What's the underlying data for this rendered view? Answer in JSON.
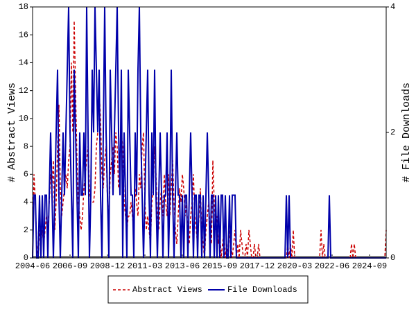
{
  "chart_data": {
    "type": "line",
    "y_label": "# Abstract Views",
    "y2_label": "# File Downloads",
    "x": [
      "2004-06",
      null,
      null,
      null,
      null,
      null,
      null,
      null,
      null,
      null,
      null,
      null,
      null,
      null,
      null,
      null,
      null,
      null,
      null,
      null,
      null,
      null,
      null,
      null,
      null,
      null,
      null,
      "2006-09",
      null,
      null,
      null,
      null,
      null,
      null,
      null,
      null,
      null,
      null,
      null,
      null,
      null,
      null,
      null,
      null,
      null,
      null,
      null,
      null,
      null,
      null,
      null,
      null,
      null,
      null,
      "2008-12",
      null,
      null,
      null,
      null,
      null,
      null,
      null,
      null,
      null,
      null,
      null,
      null,
      null,
      null,
      null,
      null,
      null,
      null,
      null,
      null,
      null,
      null,
      null,
      null,
      null,
      null,
      "2011-03",
      null,
      null,
      null,
      null,
      null,
      null,
      null,
      null,
      null,
      null,
      null,
      null,
      null,
      null,
      null,
      null,
      null,
      null,
      null,
      null,
      null,
      null,
      null,
      null,
      null,
      null,
      "2013-06",
      null,
      null,
      null,
      null,
      null,
      null,
      null,
      null,
      null,
      null,
      null,
      null,
      null,
      null,
      null,
      null,
      null,
      null,
      null,
      null,
      null,
      null,
      null,
      null,
      null,
      null,
      "2015-09",
      null,
      null,
      null,
      null,
      null,
      null,
      null,
      null,
      null,
      null,
      null,
      null,
      null,
      null,
      null,
      null,
      null,
      null,
      null,
      null,
      null,
      null,
      null,
      null,
      null,
      null,
      "2017-12",
      null,
      null,
      null,
      null,
      null,
      null,
      null,
      null,
      null,
      null,
      null,
      null,
      null,
      null,
      null,
      null,
      null,
      null,
      null,
      null,
      null,
      null,
      null,
      null,
      null,
      null,
      "2020-03",
      null,
      null,
      null,
      null,
      null,
      null,
      null,
      null,
      null,
      null,
      null,
      null,
      null,
      null,
      null,
      null,
      null,
      null,
      null,
      null,
      null,
      null,
      null,
      null,
      null,
      null,
      "2022-06",
      null,
      null,
      null,
      null,
      null,
      null,
      null,
      null,
      null,
      null,
      null,
      null,
      null,
      null,
      null,
      null,
      null,
      null,
      null,
      null,
      null,
      null,
      null,
      null,
      null,
      null,
      "2024-09",
      null,
      null,
      null,
      null,
      null,
      null,
      null,
      null,
      null,
      null,
      null,
      null
    ],
    "series": [
      {
        "name": "Abstract Views",
        "color": "#cc0000",
        "dashed": true,
        "values": [
          0,
          6,
          4,
          1,
          0,
          2,
          1,
          2,
          1,
          2,
          3,
          2,
          4,
          6,
          5,
          7,
          2,
          4,
          8,
          11,
          5,
          3,
          4,
          5,
          6,
          5,
          7,
          8,
          14,
          9,
          17,
          12,
          7,
          4,
          3,
          2,
          3,
          5,
          6,
          7,
          8,
          5,
          4,
          4,
          4,
          5,
          8,
          9,
          12,
          10,
          6,
          5,
          7,
          8,
          4,
          3,
          6,
          7,
          8,
          6,
          9,
          8,
          5,
          6,
          9,
          8,
          4,
          3,
          2,
          3,
          3,
          4,
          3,
          2,
          5,
          4,
          3,
          6,
          5,
          8,
          9,
          4,
          2,
          3,
          2,
          1,
          4,
          5,
          8,
          6,
          3,
          2,
          4,
          5,
          3,
          6,
          4,
          3,
          6,
          3,
          5,
          7,
          4,
          2,
          1,
          3,
          5,
          4,
          6,
          5,
          3,
          4,
          2,
          1,
          3,
          4,
          6,
          3,
          2,
          1,
          3,
          5,
          2,
          1,
          0,
          2,
          3,
          4,
          2,
          1,
          7,
          4,
          2,
          3,
          1,
          2,
          0,
          1,
          2,
          0,
          1,
          0,
          2,
          1,
          0,
          1,
          2,
          0,
          1,
          0,
          2,
          1,
          0,
          0,
          1,
          0,
          2,
          1,
          0,
          0,
          1,
          0,
          0,
          1,
          0,
          0,
          0,
          0,
          0,
          0,
          0,
          0,
          0,
          0,
          0,
          0,
          0,
          0,
          0,
          0,
          0,
          0,
          0,
          0,
          1,
          0,
          1,
          0,
          2,
          0,
          0,
          0,
          0,
          0,
          0,
          0,
          0,
          0,
          0,
          0,
          0,
          0,
          0,
          0,
          0,
          0,
          0,
          0,
          2,
          0,
          1,
          0,
          0,
          0,
          0,
          0,
          0,
          0,
          0,
          0,
          0,
          0,
          0,
          0,
          0,
          0,
          0,
          0,
          0,
          0,
          1,
          0,
          1,
          0,
          0,
          0,
          0,
          0,
          0,
          0,
          0,
          0,
          0,
          0,
          0,
          0,
          0,
          0,
          0,
          0,
          0,
          0,
          0,
          0,
          0,
          2
        ]
      },
      {
        "name": "File Downloads",
        "color": "#0000aa",
        "dashed": false,
        "axis": "y2",
        "values": [
          0,
          1,
          1,
          0,
          0,
          1,
          0,
          1,
          0,
          1,
          1,
          0,
          1,
          2,
          1,
          0,
          1,
          2,
          3,
          1,
          0,
          1,
          2,
          1,
          2,
          3,
          4,
          2,
          1,
          0,
          3,
          2,
          1,
          0,
          2,
          1,
          1,
          2,
          1,
          4,
          2,
          0,
          1,
          3,
          2,
          4,
          3,
          2,
          3,
          1,
          0,
          2,
          4,
          2,
          1,
          0,
          3,
          2,
          1,
          2,
          3,
          4,
          2,
          1,
          3,
          0,
          2,
          1,
          0,
          3,
          2,
          1,
          1,
          0,
          2,
          1,
          3,
          4,
          2,
          1,
          0,
          1,
          2,
          3,
          1,
          0,
          2,
          1,
          3,
          1,
          0,
          1,
          2,
          1,
          0,
          1,
          1,
          2,
          0,
          1,
          3,
          1,
          0,
          1,
          2,
          1,
          1,
          0,
          1,
          0,
          1,
          1,
          0,
          1,
          2,
          1,
          0,
          1,
          1,
          0,
          1,
          1,
          0,
          1,
          0,
          1,
          2,
          1,
          0,
          1,
          1,
          0,
          1,
          0,
          1,
          0,
          1,
          1,
          0,
          1,
          0,
          0,
          1,
          0,
          1,
          1,
          1,
          0,
          0,
          0,
          0,
          0,
          0,
          0,
          0,
          0,
          0,
          0,
          0,
          0,
          0,
          0,
          0,
          0,
          0,
          0,
          0,
          0,
          0,
          0,
          0,
          0,
          0,
          0,
          0,
          0,
          0,
          0,
          0,
          0,
          0,
          0,
          0,
          1,
          0,
          1,
          0,
          0,
          0,
          0,
          0,
          0,
          0,
          0,
          0,
          0,
          0,
          0,
          0,
          0,
          0,
          0,
          0,
          0,
          0,
          0,
          0,
          0,
          0,
          0,
          0,
          0,
          0,
          0,
          1,
          0,
          0,
          0,
          0,
          0,
          0,
          0,
          0,
          0,
          0,
          0,
          0,
          0,
          0,
          0,
          0,
          0,
          0,
          0,
          0,
          0,
          0,
          0,
          0,
          0,
          0,
          0,
          0,
          0,
          0,
          0,
          0,
          0,
          0,
          0,
          0,
          0,
          0,
          0,
          0,
          0
        ]
      }
    ],
    "ylim": [
      0,
      18
    ],
    "yticks": [
      0,
      2,
      4,
      6,
      8,
      10,
      12,
      14,
      16,
      18
    ],
    "y2lim": [
      0,
      4
    ],
    "y2ticks": [
      0,
      2,
      4
    ],
    "legend": "bottom"
  }
}
